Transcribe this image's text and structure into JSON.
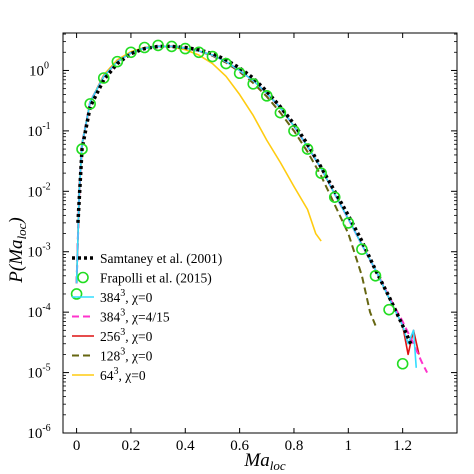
{
  "chart_data": {
    "type": "line",
    "xlabel": "Ma",
    "xlabel_sub": "loc",
    "ylabel": "P(Ma",
    "ylabel_sub": "loc",
    "ylabel_close": ")",
    "xlim": [
      -0.05,
      1.4
    ],
    "ylim_log10": [
      -6,
      0.62
    ],
    "log_y": true,
    "grid": false,
    "legend_placement": "bottom-left",
    "x_ticks": [
      {
        "value": 0,
        "label": "0"
      },
      {
        "value": 0.2,
        "label": "0.2"
      },
      {
        "value": 0.4,
        "label": "0.4"
      },
      {
        "value": 0.6,
        "label": "0.6"
      },
      {
        "value": 0.8,
        "label": "0.8"
      },
      {
        "value": 1.0,
        "label": "1"
      },
      {
        "value": 1.2,
        "label": "1.2"
      }
    ],
    "y_ticks": [
      {
        "exp": 0,
        "base": "10",
        "sup": "0"
      },
      {
        "exp": -1,
        "base": "10",
        "sup": "-1"
      },
      {
        "exp": -2,
        "base": "10",
        "sup": "-2"
      },
      {
        "exp": -3,
        "base": "10",
        "sup": "-3"
      },
      {
        "exp": -4,
        "base": "10",
        "sup": "-4"
      },
      {
        "exp": -5,
        "base": "10",
        "sup": "-5"
      },
      {
        "exp": -6,
        "base": "10",
        "sup": "-6"
      }
    ],
    "series": [
      {
        "name": "Samtaney et al. (2001)",
        "color": "#000000",
        "style": "dotted-thick",
        "x": [
          0.005,
          0.02,
          0.05,
          0.1,
          0.15,
          0.2,
          0.25,
          0.3,
          0.35,
          0.4,
          0.45,
          0.5,
          0.55,
          0.6,
          0.65,
          0.7,
          0.75,
          0.8,
          0.85,
          0.9,
          0.95,
          1.0,
          1.05,
          1.1,
          1.15,
          1.2,
          1.23
        ],
        "y": [
          0.003,
          0.05,
          0.25,
          0.7,
          1.3,
          1.9,
          2.3,
          2.5,
          2.5,
          2.4,
          2.2,
          1.9,
          1.5,
          1.1,
          0.75,
          0.45,
          0.25,
          0.13,
          0.06,
          0.025,
          0.01,
          0.004,
          0.0015,
          0.0005,
          0.00018,
          6e-05,
          3e-05
        ]
      },
      {
        "name": "Frapolli et al. (2015)",
        "color": "#22dd22",
        "style": "circle",
        "x": [
          0.0,
          0.02,
          0.05,
          0.1,
          0.15,
          0.2,
          0.25,
          0.3,
          0.35,
          0.4,
          0.45,
          0.5,
          0.55,
          0.6,
          0.65,
          0.7,
          0.75,
          0.8,
          0.85,
          0.9,
          0.95,
          1.0,
          1.05,
          1.1,
          1.15,
          1.2
        ],
        "y": [
          0.0002,
          0.05,
          0.28,
          0.75,
          1.4,
          2.0,
          2.4,
          2.6,
          2.5,
          2.3,
          2.0,
          1.7,
          1.3,
          0.9,
          0.6,
          0.38,
          0.2,
          0.1,
          0.05,
          0.02,
          0.008,
          0.003,
          0.0011,
          0.0004,
          0.00011,
          1.4e-05
        ]
      },
      {
        "name": "384^3, χ=0",
        "name_parts": [
          "384",
          "3",
          ", χ=0"
        ],
        "color": "#33ddff",
        "style": "solid",
        "x": [
          0.0,
          0.01,
          0.02,
          0.05,
          0.1,
          0.15,
          0.2,
          0.25,
          0.3,
          0.35,
          0.4,
          0.45,
          0.5,
          0.55,
          0.6,
          0.65,
          0.7,
          0.75,
          0.8,
          0.85,
          0.9,
          0.95,
          1.0,
          1.05,
          1.1,
          1.15,
          1.2,
          1.22,
          1.24,
          1.25
        ],
        "y": [
          0.0003,
          0.01,
          0.06,
          0.3,
          0.8,
          1.4,
          1.95,
          2.35,
          2.5,
          2.5,
          2.35,
          2.1,
          1.8,
          1.4,
          1.0,
          0.68,
          0.42,
          0.24,
          0.12,
          0.055,
          0.024,
          0.009,
          0.0035,
          0.0013,
          0.0005,
          0.00017,
          6e-05,
          3e-05,
          5e-05,
          1.2e-05
        ]
      },
      {
        "name": "384^3, χ=4/15",
        "name_parts": [
          "384",
          "3",
          ", χ=4/15"
        ],
        "color": "#ff33cc",
        "style": "dashed",
        "x": [
          0.0,
          0.01,
          0.02,
          0.05,
          0.1,
          0.15,
          0.2,
          0.25,
          0.3,
          0.35,
          0.4,
          0.45,
          0.5,
          0.55,
          0.6,
          0.65,
          0.7,
          0.75,
          0.8,
          0.85,
          0.9,
          0.95,
          1.0,
          1.05,
          1.1,
          1.15,
          1.2,
          1.24,
          1.27,
          1.29
        ],
        "y": [
          0.0003,
          0.01,
          0.06,
          0.3,
          0.8,
          1.4,
          1.95,
          2.35,
          2.5,
          2.5,
          2.35,
          2.1,
          1.8,
          1.4,
          1.0,
          0.68,
          0.42,
          0.24,
          0.12,
          0.055,
          0.024,
          0.009,
          0.0035,
          0.0013,
          0.0005,
          0.00018,
          7e-05,
          3e-05,
          1.5e-05,
          1e-05
        ]
      },
      {
        "name": "256^3, χ=0",
        "name_parts": [
          "256",
          "3",
          ", χ=0"
        ],
        "color": "#dd1111",
        "style": "solid",
        "x": [
          0.0,
          0.01,
          0.02,
          0.05,
          0.1,
          0.15,
          0.2,
          0.25,
          0.3,
          0.35,
          0.4,
          0.45,
          0.5,
          0.55,
          0.6,
          0.65,
          0.7,
          0.75,
          0.8,
          0.85,
          0.9,
          0.95,
          1.0,
          1.05,
          1.1,
          1.15,
          1.2,
          1.22,
          1.24,
          1.26
        ],
        "y": [
          0.0003,
          0.01,
          0.06,
          0.3,
          0.8,
          1.4,
          1.95,
          2.35,
          2.5,
          2.5,
          2.35,
          2.1,
          1.8,
          1.4,
          1.0,
          0.68,
          0.42,
          0.24,
          0.12,
          0.055,
          0.024,
          0.009,
          0.0035,
          0.0013,
          0.0005,
          0.00017,
          6e-05,
          2e-05,
          5e-05,
          2e-05
        ]
      },
      {
        "name": "128^3, χ=0",
        "name_parts": [
          "128",
          "3",
          ", χ=0"
        ],
        "color": "#666611",
        "style": "dashed",
        "x": [
          0.0,
          0.01,
          0.02,
          0.05,
          0.1,
          0.15,
          0.2,
          0.25,
          0.3,
          0.35,
          0.4,
          0.45,
          0.5,
          0.55,
          0.6,
          0.65,
          0.7,
          0.75,
          0.8,
          0.85,
          0.9,
          0.95,
          1.0,
          1.05,
          1.08,
          1.1
        ],
        "y": [
          0.0003,
          0.01,
          0.06,
          0.3,
          0.8,
          1.4,
          1.95,
          2.35,
          2.5,
          2.5,
          2.35,
          2.1,
          1.75,
          1.35,
          0.95,
          0.62,
          0.37,
          0.2,
          0.1,
          0.045,
          0.018,
          0.006,
          0.002,
          0.0004,
          0.0001,
          6e-05
        ]
      },
      {
        "name": "64^3, χ=0",
        "name_parts": [
          "64",
          "3",
          ", χ=0"
        ],
        "color": "#ffcc11",
        "style": "solid",
        "x": [
          0.0,
          0.01,
          0.02,
          0.05,
          0.1,
          0.15,
          0.2,
          0.25,
          0.3,
          0.35,
          0.4,
          0.45,
          0.5,
          0.55,
          0.6,
          0.65,
          0.7,
          0.75,
          0.8,
          0.85,
          0.88,
          0.9
        ],
        "y": [
          0.0003,
          0.01,
          0.06,
          0.3,
          0.85,
          1.5,
          2.05,
          2.4,
          2.5,
          2.45,
          2.2,
          1.8,
          1.3,
          0.8,
          0.4,
          0.18,
          0.07,
          0.03,
          0.012,
          0.005,
          0.002,
          0.0015
        ]
      }
    ]
  }
}
